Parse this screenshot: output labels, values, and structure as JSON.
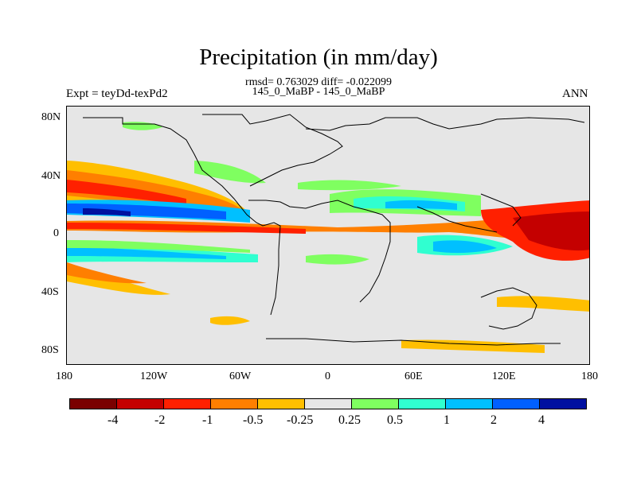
{
  "title": "Precipitation (in mm/day)",
  "stats_line": "rmsd= 0.763029 diff= -0.022099",
  "case_line": "145_0_MaBP - 145_0_MaBP",
  "left_label": "Expt = teyDd-texPd2",
  "right_label": "ANN",
  "y_ticks": [
    "80N",
    "40N",
    "0",
    "40S",
    "80S"
  ],
  "x_ticks": [
    "180",
    "120W",
    "60W",
    "0",
    "60E",
    "120E",
    "180"
  ],
  "colorbar": {
    "colors": [
      "#7a0000",
      "#c40000",
      "#ff2000",
      "#ff7f00",
      "#ffbf00",
      "#e6e6e6",
      "#7fff60",
      "#30ffd0",
      "#00c0ff",
      "#0060ff",
      "#0010a0"
    ],
    "labels": [
      "-4",
      "-2",
      "-1",
      "-0.5",
      "-0.25",
      "0.25",
      "0.5",
      "1",
      "2",
      "4"
    ]
  }
}
